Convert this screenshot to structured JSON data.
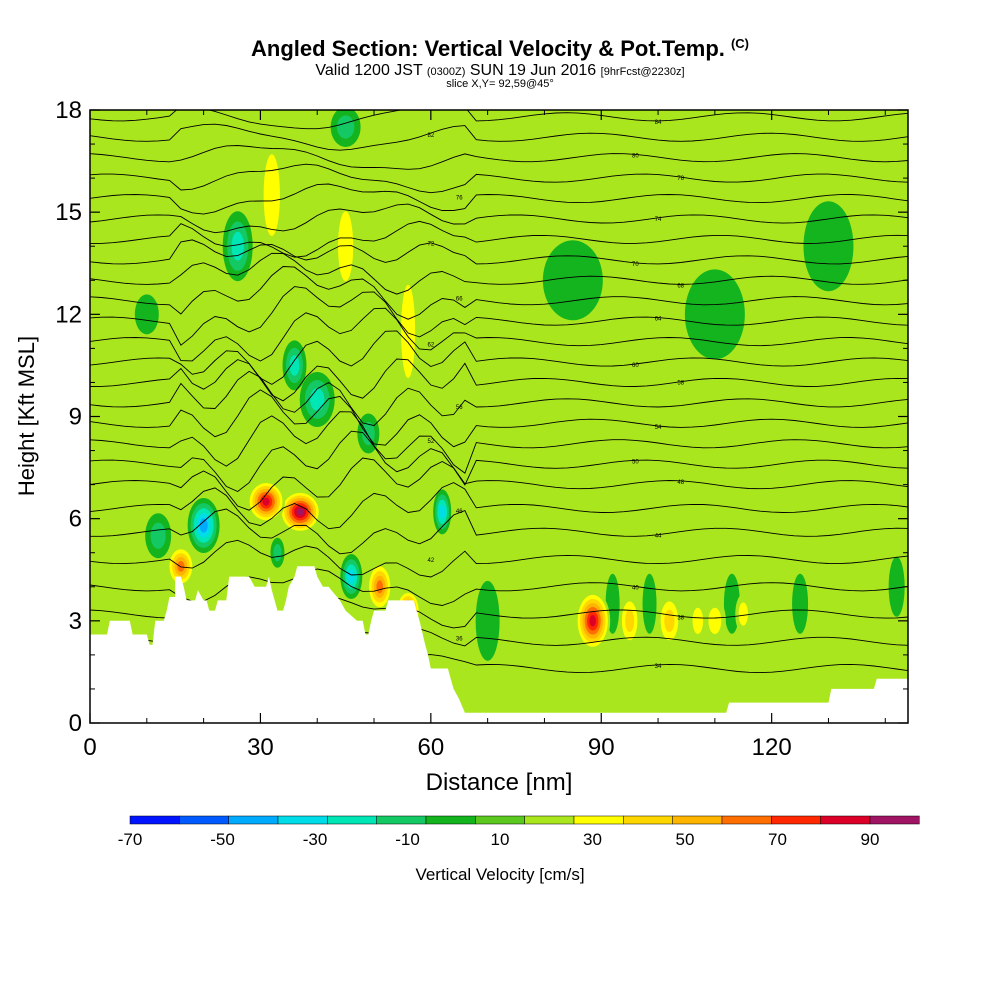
{
  "title": {
    "main": "Angled Section: Vertical Velocity & Pot.Temp.",
    "copyright": "(C)",
    "valid_prefix": "Valid 1200 JST",
    "utc": "(0300Z)",
    "valid_date": "SUN 19 Jun 2016",
    "forecast": "[9hrFcst@2230z]",
    "slice": "slice X,Y= 92,59@45°"
  },
  "chart_data": {
    "type": "heatmap",
    "xlabel": "Distance [nm]",
    "ylabel": "Height [Kft MSL]",
    "xlim": [
      0,
      144
    ],
    "ylim": [
      0,
      18
    ],
    "x_ticks": [
      0,
      30,
      60,
      90,
      120
    ],
    "y_ticks": [
      0,
      3,
      6,
      9,
      12,
      15,
      18
    ],
    "colorbar": {
      "label": "Vertical Velocity [cm/s]",
      "min": -70,
      "max": 90,
      "step": 10,
      "tick_labels": [
        "-70",
        "-50",
        "-30",
        "-10",
        "10",
        "30",
        "50",
        "70",
        "90"
      ],
      "colors": [
        "#0014ff",
        "#005aff",
        "#00aaff",
        "#00dde8",
        "#00e6b4",
        "#14c864",
        "#14b41e",
        "#5ac81e",
        "#aae61e",
        "#ffff00",
        "#ffd700",
        "#ffb400",
        "#ff6e00",
        "#ff2800",
        "#dc0028",
        "#a01464",
        "#641e96"
      ]
    },
    "terrain_kft": [
      [
        0,
        2.6
      ],
      [
        3,
        2.6
      ],
      [
        3.5,
        3.0
      ],
      [
        7,
        3.0
      ],
      [
        7.5,
        2.6
      ],
      [
        10,
        2.6
      ],
      [
        10.5,
        2.3
      ],
      [
        11,
        2.3
      ],
      [
        11.5,
        3.0
      ],
      [
        13,
        3.0
      ],
      [
        13.5,
        3.3
      ],
      [
        14,
        3.7
      ],
      [
        15,
        3.7
      ],
      [
        15,
        4.3
      ],
      [
        16,
        4.3
      ],
      [
        16.5,
        4.0
      ],
      [
        17,
        3.6
      ],
      [
        18,
        3.6
      ],
      [
        18.5,
        3.6
      ],
      [
        19,
        3.9
      ],
      [
        20,
        3.6
      ],
      [
        20.5,
        3.6
      ],
      [
        21,
        3.3
      ],
      [
        22,
        3.3
      ],
      [
        22.5,
        3.6
      ],
      [
        24,
        3.6
      ],
      [
        24.5,
        4.3
      ],
      [
        28,
        4.3
      ],
      [
        29,
        4.0
      ],
      [
        31,
        4.0
      ],
      [
        31.5,
        4.3
      ],
      [
        32,
        3.9
      ],
      [
        33,
        3.3
      ],
      [
        34,
        3.3
      ],
      [
        34.5,
        3.6
      ],
      [
        35,
        4.0
      ],
      [
        36,
        4.3
      ],
      [
        36.5,
        4.6
      ],
      [
        39.5,
        4.6
      ],
      [
        40,
        4.3
      ],
      [
        41,
        4.0
      ],
      [
        42,
        4.0
      ],
      [
        42.5,
        3.9
      ],
      [
        44,
        3.6
      ],
      [
        45,
        3.3
      ],
      [
        47,
        3.0
      ],
      [
        48,
        3.0
      ],
      [
        48.5,
        2.6
      ],
      [
        49,
        2.6
      ],
      [
        49.5,
        3.0
      ],
      [
        50,
        3.3
      ],
      [
        52,
        3.3
      ],
      [
        52.5,
        3.6
      ],
      [
        57,
        3.6
      ],
      [
        57.5,
        3.3
      ],
      [
        58,
        3.0
      ],
      [
        59,
        2.3
      ],
      [
        59.5,
        2.0
      ],
      [
        60,
        1.6
      ],
      [
        63,
        1.6
      ],
      [
        63.5,
        1.3
      ],
      [
        64,
        1.0
      ],
      [
        65,
        0.7
      ],
      [
        66,
        0.3
      ],
      [
        67,
        0.3
      ],
      [
        67,
        0.3
      ],
      [
        112,
        0.3
      ],
      [
        112.5,
        0.6
      ],
      [
        130,
        0.6
      ],
      [
        130.5,
        1.0
      ],
      [
        138,
        1.0
      ],
      [
        138.5,
        1.3
      ],
      [
        144,
        1.3
      ]
    ],
    "updrafts": [
      {
        "x": 37,
        "y": 6.2,
        "w": 42,
        "h": 43,
        "v": 90
      },
      {
        "x": 31,
        "y": 6.5,
        "w": 38,
        "h": 43,
        "v": 80
      },
      {
        "x": 88.5,
        "y": 3.0,
        "w": 35,
        "h": 60,
        "v": 80
      },
      {
        "x": 56,
        "y": 3.3,
        "w": 25,
        "h": 42,
        "v": 70
      },
      {
        "x": 51,
        "y": 4.0,
        "w": 26,
        "h": 50,
        "v": 60
      },
      {
        "x": 16,
        "y": 4.6,
        "w": 28,
        "h": 42,
        "v": 60
      },
      {
        "x": 102,
        "y": 3.0,
        "w": 25,
        "h": 55,
        "v": 40
      },
      {
        "x": 95,
        "y": 3.0,
        "w": 22,
        "h": 55,
        "v": 35
      },
      {
        "x": 110,
        "y": 3.0,
        "w": 22,
        "h": 45,
        "v": 30
      },
      {
        "x": 107,
        "y": 3.0,
        "w": 18,
        "h": 45,
        "v": 30
      },
      {
        "x": 115,
        "y": 3.2,
        "w": 16,
        "h": 40,
        "v": 25
      },
      {
        "x": 120,
        "y": 3.4,
        "w": 16,
        "h": 40,
        "v": 20
      },
      {
        "x": 130,
        "y": 3.0,
        "w": 16,
        "h": 40,
        "v": 20
      },
      {
        "x": 32,
        "y": 15.5,
        "w": 28,
        "h": 140,
        "v": 30
      },
      {
        "x": 45,
        "y": 14.0,
        "w": 26,
        "h": 120,
        "v": 30
      },
      {
        "x": 56,
        "y": 11.5,
        "w": 24,
        "h": 160,
        "v": 30
      },
      {
        "x": 51,
        "y": 15.0,
        "w": 22,
        "h": 120,
        "v": 20
      },
      {
        "x": 8,
        "y": 15.0,
        "w": 30,
        "h": 90,
        "v": 20
      },
      {
        "x": 7,
        "y": 9.5,
        "w": 24,
        "h": 80,
        "v": 20
      },
      {
        "x": 66,
        "y": 7.5,
        "w": 22,
        "h": 40,
        "v": 20
      },
      {
        "x": 73,
        "y": 10.0,
        "w": 22,
        "h": 50,
        "v": 20
      },
      {
        "x": 90,
        "y": 9.8,
        "w": 20,
        "h": 30,
        "v": 20
      },
      {
        "x": 22,
        "y": 13.0,
        "w": 24,
        "h": 60,
        "v": 20
      },
      {
        "x": 61,
        "y": 14.0,
        "w": 20,
        "h": 120,
        "v": 20
      }
    ],
    "downdrafts": [
      {
        "x": 20,
        "y": 5.8,
        "w": 32,
        "h": 55,
        "v": -50
      },
      {
        "x": 46,
        "y": 4.3,
        "w": 22,
        "h": 45,
        "v": -40
      },
      {
        "x": 62,
        "y": 6.2,
        "w": 18,
        "h": 45,
        "v": -40
      },
      {
        "x": 40,
        "y": 9.5,
        "w": 35,
        "h": 55,
        "v": -30
      },
      {
        "x": 26,
        "y": 14.0,
        "w": 30,
        "h": 70,
        "v": -30
      },
      {
        "x": 36,
        "y": 10.5,
        "w": 24,
        "h": 50,
        "v": -30
      },
      {
        "x": 49,
        "y": 8.5,
        "w": 22,
        "h": 40,
        "v": -20
      },
      {
        "x": 33,
        "y": 5.0,
        "w": 14,
        "h": 30,
        "v": -20
      },
      {
        "x": 12,
        "y": 5.5,
        "w": 26,
        "h": 45,
        "v": -20
      },
      {
        "x": 70,
        "y": 3.0,
        "w": 24,
        "h": 80,
        "v": -10
      },
      {
        "x": 92,
        "y": 3.5,
        "w": 14,
        "h": 60,
        "v": -10
      },
      {
        "x": 98.5,
        "y": 3.5,
        "w": 14,
        "h": 60,
        "v": -10
      },
      {
        "x": 113,
        "y": 3.5,
        "w": 16,
        "h": 60,
        "v": -10
      },
      {
        "x": 125,
        "y": 3.5,
        "w": 16,
        "h": 60,
        "v": -10
      },
      {
        "x": 142,
        "y": 4.0,
        "w": 16,
        "h": 60,
        "v": -10
      },
      {
        "x": 85,
        "y": 13.0,
        "w": 60,
        "h": 80,
        "v": -10
      },
      {
        "x": 110,
        "y": 12.0,
        "w": 60,
        "h": 90,
        "v": -10
      },
      {
        "x": 130,
        "y": 14.0,
        "w": 50,
        "h": 90,
        "v": -10
      },
      {
        "x": 45,
        "y": 17.5,
        "w": 30,
        "h": 40,
        "v": -20
      },
      {
        "x": 10,
        "y": 12.0,
        "w": 24,
        "h": 40,
        "v": -10
      }
    ],
    "isentropes_kft": [
      1.6,
      2.4,
      3.2,
      4.0,
      4.8,
      5.6,
      6.3,
      7.0,
      7.6,
      8.2,
      8.8,
      9.4,
      10.0,
      10.6,
      11.2,
      11.8,
      12.4,
      13.0,
      13.6,
      14.2,
      14.8,
      15.4,
      16.0,
      16.6,
      17.2,
      17.8
    ],
    "isentrope_values": [
      34,
      36,
      38,
      40,
      42,
      44,
      46,
      48,
      50,
      52,
      54,
      56,
      58,
      60,
      62,
      64,
      66,
      68,
      70,
      72,
      74,
      76,
      78,
      80,
      82,
      84
    ]
  }
}
